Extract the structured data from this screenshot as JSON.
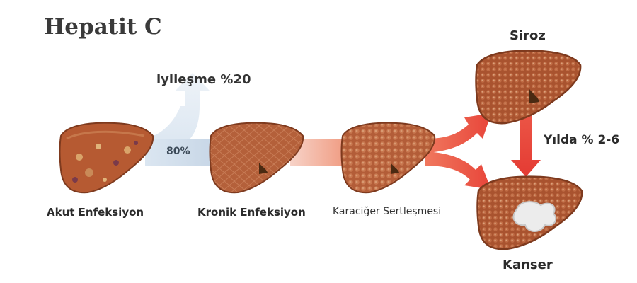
{
  "title": "Hepatit C",
  "stages": {
    "acute": "Akut Enfeksiyon",
    "chronic": "Kronik Enfeksiyon",
    "fibrosis": "Karaciğer Sertleşmesi",
    "cirrhosis": "Siroz",
    "cancer": "Kanser"
  },
  "transitions": {
    "recovery": "iyileşme %20",
    "chronic_rate": "80%",
    "cancer_rate": "Yılda % 2-6"
  },
  "colors": {
    "liver_fill": "#b15a34",
    "liver_dark": "#7e3a1e",
    "flow_blue": "#c9d9ea",
    "flow_red": "#e8463a"
  }
}
